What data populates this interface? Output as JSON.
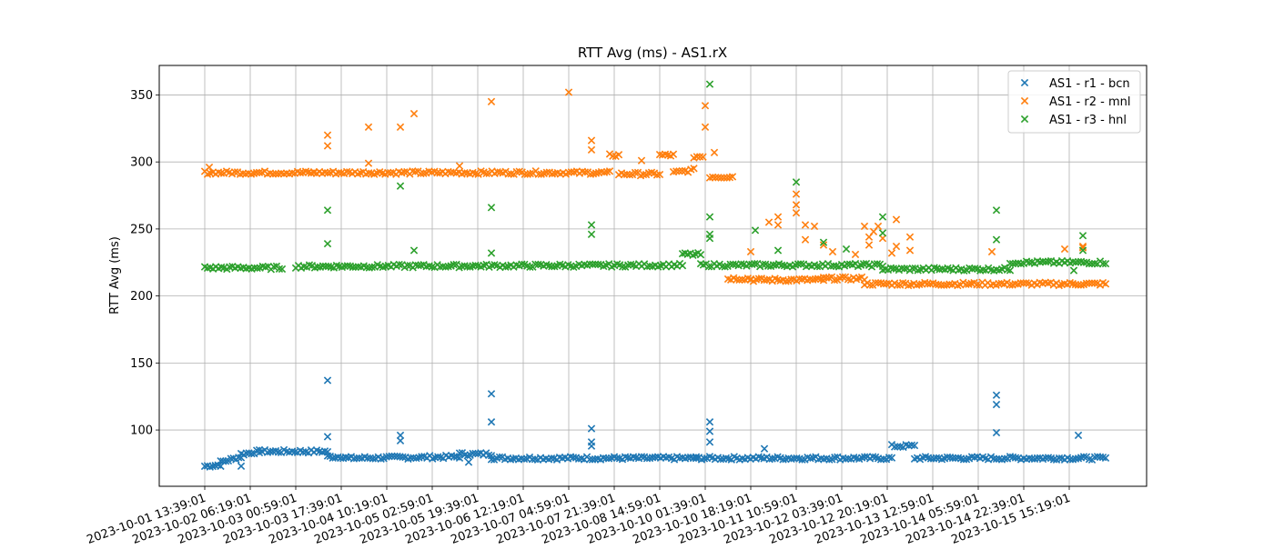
{
  "chart_data": {
    "type": "scatter",
    "title": "RTT Avg (ms) - AS1.rX",
    "xlabel": "",
    "ylabel": "RTT Avg (ms)",
    "x_ticks": [
      "2023-10-01 13:39:01",
      "2023-10-02 06:19:01",
      "2023-10-03 00:59:01",
      "2023-10-03 17:39:01",
      "2023-10-04 10:19:01",
      "2023-10-05 02:59:01",
      "2023-10-05 19:39:01",
      "2023-10-06 12:19:01",
      "2023-10-07 04:59:01",
      "2023-10-07 21:39:01",
      "2023-10-08 14:59:01",
      "2023-10-10 01:39:01",
      "2023-10-10 18:19:01",
      "2023-10-11 10:59:01",
      "2023-10-12 03:39:01",
      "2023-10-12 20:19:01",
      "2023-10-13 12:59:01",
      "2023-10-14 05:59:01",
      "2023-10-14 22:39:01",
      "2023-10-15 15:19:01"
    ],
    "y_ticks": [
      100,
      150,
      200,
      250,
      300,
      350
    ],
    "ylim": [
      58,
      372
    ],
    "xlim": [
      -1.0,
      20.7
    ],
    "grid": true,
    "legend_position": "top-right",
    "marker": "x",
    "series": [
      {
        "name": "AS1 - r1 - bcn",
        "color": "#1f77b4",
        "segments": [
          {
            "x0": 0.0,
            "x1": 0.35,
            "y0": 73,
            "y1": 74,
            "step": 0.06
          },
          {
            "x0": 0.35,
            "x1": 0.8,
            "y0": 76,
            "y1": 80,
            "step": 0.06
          },
          {
            "x0": 0.8,
            "x1": 1.2,
            "y0": 82,
            "y1": 84,
            "step": 0.06
          },
          {
            "x0": 1.2,
            "x1": 2.7,
            "y0": 84,
            "y1": 84,
            "step": 0.06
          },
          {
            "x0": 2.7,
            "x1": 3.1,
            "y0": 80,
            "y1": 80,
            "step": 0.06
          },
          {
            "x0": 3.1,
            "x1": 5.6,
            "y0": 79,
            "y1": 80,
            "step": 0.06
          },
          {
            "x0": 5.6,
            "x1": 6.3,
            "y0": 82,
            "y1": 82,
            "step": 0.06
          },
          {
            "x0": 6.3,
            "x1": 10.8,
            "y0": 79,
            "y1": 79,
            "step": 0.06
          },
          {
            "x0": 10.8,
            "x1": 15.1,
            "y0": 79,
            "y1": 79,
            "step": 0.06
          },
          {
            "x0": 15.1,
            "x1": 15.6,
            "y0": 88,
            "y1": 88,
            "step": 0.06
          },
          {
            "x0": 15.6,
            "x1": 19.8,
            "y0": 79,
            "y1": 79,
            "step": 0.06
          }
        ],
        "points": [
          [
            0.8,
            73
          ],
          [
            2.7,
            137
          ],
          [
            2.7,
            95
          ],
          [
            4.3,
            96
          ],
          [
            4.3,
            92
          ],
          [
            5.8,
            76
          ],
          [
            6.3,
            127
          ],
          [
            6.3,
            106
          ],
          [
            8.5,
            101
          ],
          [
            8.5,
            91
          ],
          [
            8.5,
            88
          ],
          [
            11.1,
            106
          ],
          [
            11.1,
            99
          ],
          [
            11.1,
            91
          ],
          [
            12.3,
            86
          ],
          [
            17.4,
            126
          ],
          [
            17.4,
            119
          ],
          [
            17.4,
            98
          ],
          [
            19.2,
            96
          ]
        ]
      },
      {
        "name": "AS1 - r2 - mnl",
        "color": "#ff7f0e",
        "segments": [
          {
            "x0": 0.0,
            "x1": 2.4,
            "y0": 292,
            "y1": 292,
            "step": 0.06
          },
          {
            "x0": 2.4,
            "x1": 8.9,
            "y0": 292,
            "y1": 292,
            "step": 0.06
          },
          {
            "x0": 8.9,
            "x1": 9.1,
            "y0": 305,
            "y1": 305,
            "step": 0.06
          },
          {
            "x0": 9.1,
            "x1": 10.0,
            "y0": 291,
            "y1": 291,
            "step": 0.06
          },
          {
            "x0": 10.0,
            "x1": 10.3,
            "y0": 305,
            "y1": 305,
            "step": 0.06
          },
          {
            "x0": 10.3,
            "x1": 10.75,
            "y0": 292,
            "y1": 294,
            "step": 0.06
          },
          {
            "x0": 10.75,
            "x1": 10.95,
            "y0": 304,
            "y1": 304,
            "step": 0.06
          },
          {
            "x0": 11.1,
            "x1": 11.6,
            "y0": 289,
            "y1": 289,
            "step": 0.06
          },
          {
            "x0": 11.5,
            "x1": 12.0,
            "y0": 213,
            "y1": 213,
            "step": 0.06
          },
          {
            "x0": 12.0,
            "x1": 13.6,
            "y0": 212,
            "y1": 212,
            "step": 0.06
          },
          {
            "x0": 13.6,
            "x1": 14.5,
            "y0": 213,
            "y1": 213,
            "step": 0.06
          },
          {
            "x0": 14.5,
            "x1": 19.8,
            "y0": 209,
            "y1": 209,
            "step": 0.06
          }
        ],
        "points": [
          [
            0.1,
            296
          ],
          [
            2.7,
            320
          ],
          [
            2.7,
            312
          ],
          [
            3.6,
            326
          ],
          [
            3.6,
            299
          ],
          [
            4.3,
            326
          ],
          [
            4.6,
            336
          ],
          [
            5.6,
            297
          ],
          [
            6.3,
            345
          ],
          [
            8.0,
            352
          ],
          [
            8.5,
            316
          ],
          [
            8.5,
            309
          ],
          [
            9.6,
            301
          ],
          [
            11.0,
            342
          ],
          [
            11.0,
            326
          ],
          [
            11.2,
            307
          ],
          [
            12.0,
            233
          ],
          [
            12.4,
            255
          ],
          [
            12.6,
            259
          ],
          [
            12.6,
            253
          ],
          [
            13.0,
            276
          ],
          [
            13.0,
            268
          ],
          [
            13.0,
            262
          ],
          [
            13.2,
            253
          ],
          [
            13.2,
            242
          ],
          [
            13.4,
            252
          ],
          [
            13.6,
            238
          ],
          [
            13.8,
            233
          ],
          [
            14.3,
            231
          ],
          [
            14.5,
            252
          ],
          [
            14.6,
            244
          ],
          [
            14.6,
            238
          ],
          [
            14.7,
            248
          ],
          [
            14.8,
            252
          ],
          [
            14.9,
            243
          ],
          [
            15.1,
            232
          ],
          [
            15.2,
            257
          ],
          [
            15.2,
            237
          ],
          [
            15.5,
            244
          ],
          [
            15.5,
            234
          ],
          [
            17.3,
            233
          ],
          [
            18.9,
            235
          ],
          [
            19.3,
            237
          ],
          [
            19.3,
            236
          ]
        ]
      },
      {
        "name": "AS1 - r3 - hnl",
        "color": "#2ca02c",
        "segments": [
          {
            "x0": 0.0,
            "x1": 1.7,
            "y0": 221,
            "y1": 221,
            "step": 0.06
          },
          {
            "x0": 2.0,
            "x1": 10.5,
            "y0": 222,
            "y1": 223,
            "step": 0.06
          },
          {
            "x0": 10.5,
            "x1": 10.9,
            "y0": 231,
            "y1": 231,
            "step": 0.06
          },
          {
            "x0": 10.9,
            "x1": 12.5,
            "y0": 223,
            "y1": 223,
            "step": 0.06
          },
          {
            "x0": 12.5,
            "x1": 14.9,
            "y0": 223,
            "y1": 223,
            "step": 0.06
          },
          {
            "x0": 14.9,
            "x1": 17.7,
            "y0": 220,
            "y1": 220,
            "step": 0.06
          },
          {
            "x0": 17.7,
            "x1": 19.8,
            "y0": 225,
            "y1": 225,
            "step": 0.06
          }
        ],
        "points": [
          [
            2.7,
            264
          ],
          [
            2.7,
            239
          ],
          [
            4.3,
            282
          ],
          [
            4.6,
            234
          ],
          [
            6.3,
            266
          ],
          [
            6.3,
            232
          ],
          [
            8.5,
            253
          ],
          [
            8.5,
            246
          ],
          [
            11.1,
            358
          ],
          [
            11.1,
            259
          ],
          [
            11.1,
            246
          ],
          [
            11.1,
            243
          ],
          [
            12.1,
            249
          ],
          [
            12.6,
            234
          ],
          [
            13.0,
            285
          ],
          [
            13.6,
            240
          ],
          [
            14.1,
            235
          ],
          [
            14.9,
            259
          ],
          [
            14.9,
            247
          ],
          [
            17.4,
            264
          ],
          [
            17.4,
            242
          ],
          [
            19.3,
            245
          ],
          [
            19.3,
            234
          ],
          [
            19.1,
            219
          ]
        ]
      }
    ]
  }
}
